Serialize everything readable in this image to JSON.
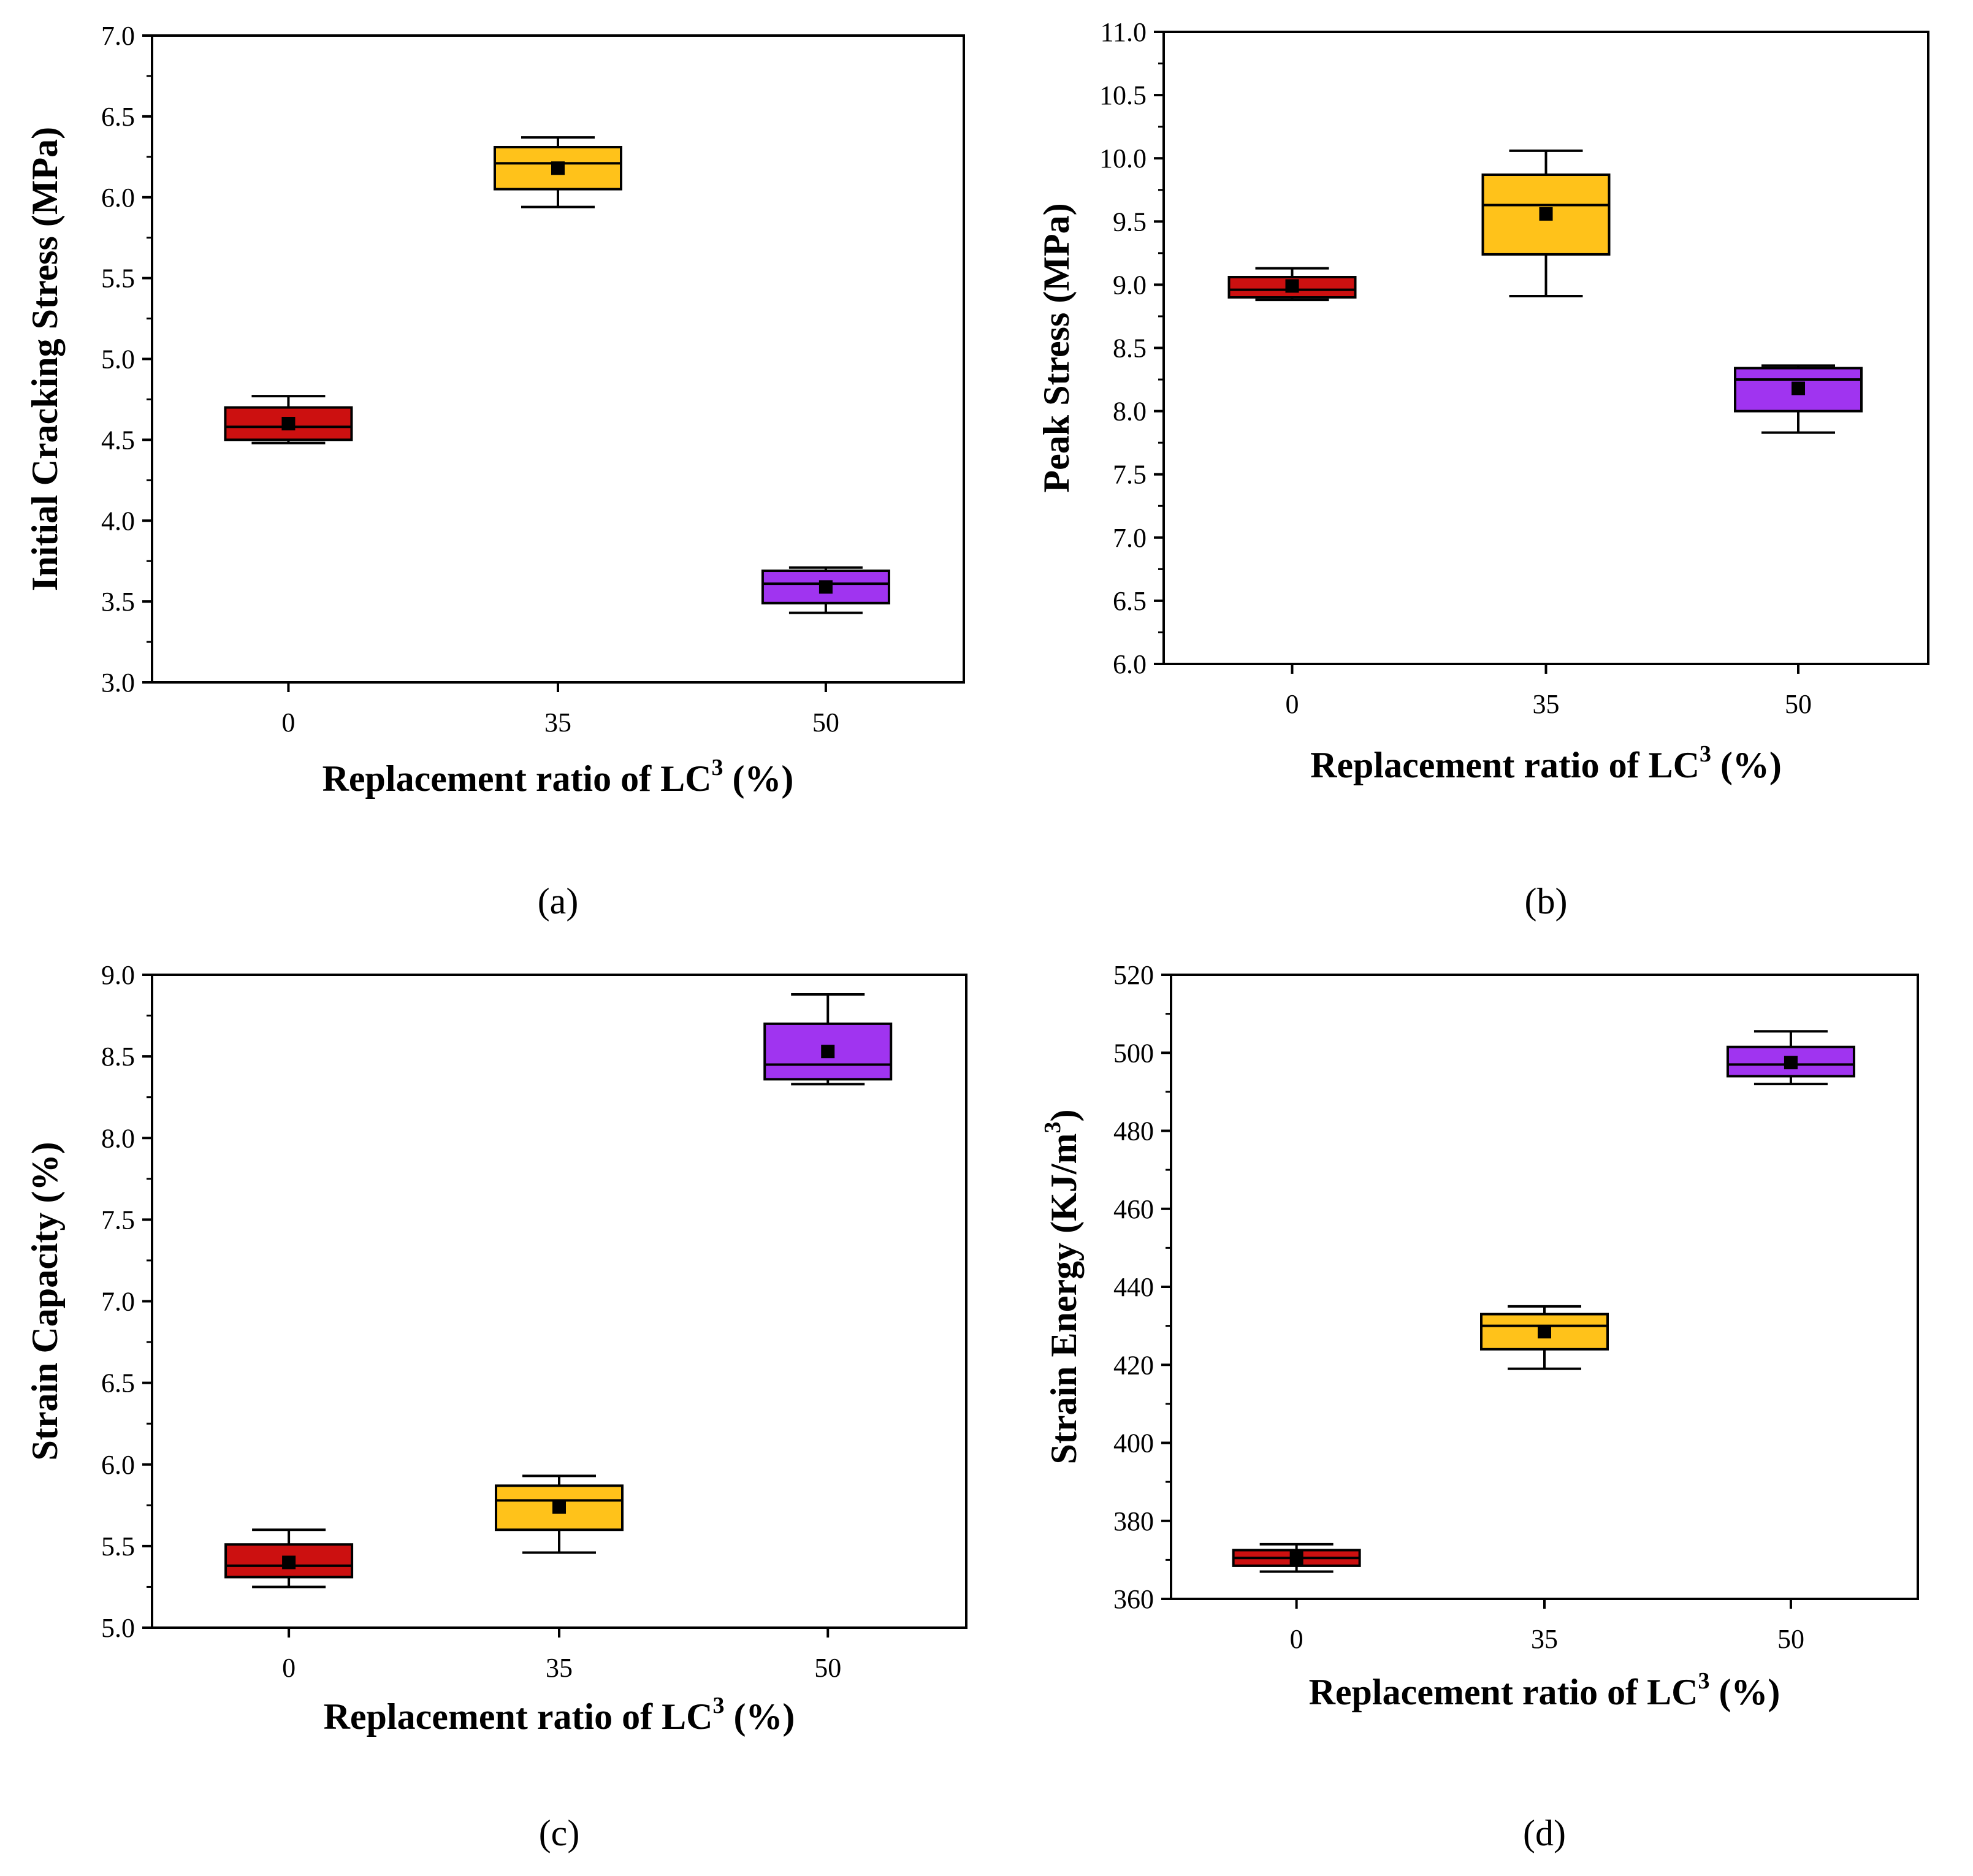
{
  "colors": {
    "series": [
      "#cc1010",
      "#ffc21a",
      "#a034f0"
    ],
    "mean_marker": "#000000",
    "axis": "#000000"
  },
  "chart_data": [
    {
      "type": "box",
      "panel_label": "(a)",
      "categories": [
        "0",
        "35",
        "50"
      ],
      "xlabel": {
        "main": "Replacement ratio of LC",
        "sup": "3",
        "tail": " (%)"
      },
      "ylabel": {
        "main": "Initial Cracking Stress (MPa)",
        "sup": "",
        "tail": ""
      },
      "ylim": [
        3.0,
        7.0
      ],
      "yticks": [
        3.0,
        3.5,
        4.0,
        4.5,
        5.0,
        5.5,
        6.0,
        6.5,
        7.0
      ],
      "ytick_labels": [
        "3.0",
        "3.5",
        "4.0",
        "4.5",
        "5.0",
        "5.5",
        "6.0",
        "6.5",
        "7.0"
      ],
      "boxes": [
        {
          "category": "0",
          "min": 4.48,
          "q1": 4.5,
          "median": 4.58,
          "q3": 4.7,
          "max": 4.77,
          "mean": 4.6
        },
        {
          "category": "35",
          "min": 5.94,
          "q1": 6.05,
          "median": 6.21,
          "q3": 6.31,
          "max": 6.37,
          "mean": 6.18
        },
        {
          "category": "50",
          "min": 3.43,
          "q1": 3.49,
          "median": 3.61,
          "q3": 3.69,
          "max": 3.71,
          "mean": 3.59
        }
      ]
    },
    {
      "type": "box",
      "panel_label": "(b)",
      "categories": [
        "0",
        "35",
        "50"
      ],
      "xlabel": {
        "main": "Replacement ratio of LC",
        "sup": "3",
        "tail": " (%)"
      },
      "ylabel": {
        "main": "Peak Stress (MPa)",
        "sup": "",
        "tail": ""
      },
      "ylim": [
        6.0,
        11.0
      ],
      "yticks": [
        6.0,
        6.5,
        7.0,
        7.5,
        8.0,
        8.5,
        9.0,
        9.5,
        10.0,
        10.5,
        11.0
      ],
      "ytick_labels": [
        "6.0",
        "6.5",
        "7.0",
        "7.5",
        "8.0",
        "8.5",
        "9.0",
        "9.5",
        "10.0",
        "10.5",
        "11.0"
      ],
      "boxes": [
        {
          "category": "0",
          "min": 8.88,
          "q1": 8.9,
          "median": 8.96,
          "q3": 9.06,
          "max": 9.13,
          "mean": 8.99
        },
        {
          "category": "35",
          "min": 8.91,
          "q1": 9.24,
          "median": 9.63,
          "q3": 9.87,
          "max": 10.06,
          "mean": 9.56
        },
        {
          "category": "50",
          "min": 7.83,
          "q1": 8.0,
          "median": 8.25,
          "q3": 8.34,
          "max": 8.36,
          "mean": 8.18
        }
      ]
    },
    {
      "type": "box",
      "panel_label": "(c)",
      "categories": [
        "0",
        "35",
        "50"
      ],
      "xlabel": {
        "main": "Replacement ratio of LC",
        "sup": "3",
        "tail": " (%)"
      },
      "ylabel": {
        "main": "Strain Capacity (%)",
        "sup": "",
        "tail": ""
      },
      "ylim": [
        5.0,
        9.0
      ],
      "yticks": [
        5.0,
        5.5,
        6.0,
        6.5,
        7.0,
        7.5,
        8.0,
        8.5,
        9.0
      ],
      "ytick_labels": [
        "5.0",
        "5.5",
        "6.0",
        "6.5",
        "7.0",
        "7.5",
        "8.0",
        "8.5",
        "9.0"
      ],
      "boxes": [
        {
          "category": "0",
          "min": 5.25,
          "q1": 5.31,
          "median": 5.38,
          "q3": 5.51,
          "max": 5.6,
          "mean": 5.4
        },
        {
          "category": "35",
          "min": 5.46,
          "q1": 5.6,
          "median": 5.78,
          "q3": 5.87,
          "max": 5.93,
          "mean": 5.74
        },
        {
          "category": "50",
          "min": 8.33,
          "q1": 8.36,
          "median": 8.45,
          "q3": 8.7,
          "max": 8.88,
          "mean": 8.53
        }
      ]
    },
    {
      "type": "box",
      "panel_label": "(d)",
      "categories": [
        "0",
        "35",
        "50"
      ],
      "xlabel": {
        "main": "Replacement ratio of LC",
        "sup": "3",
        "tail": " (%)"
      },
      "ylabel": {
        "main": "Strain Energy (KJ/m",
        "sup": "3",
        "tail": ")"
      },
      "ylim": [
        360,
        520
      ],
      "yticks": [
        360,
        380,
        400,
        420,
        440,
        460,
        480,
        500,
        520
      ],
      "ytick_labels": [
        "360",
        "380",
        "400",
        "420",
        "440",
        "460",
        "480",
        "500",
        "520"
      ],
      "boxes": [
        {
          "category": "0",
          "min": 367,
          "q1": 368.5,
          "median": 370.5,
          "q3": 372.5,
          "max": 374,
          "mean": 370.5
        },
        {
          "category": "35",
          "min": 419,
          "q1": 424,
          "median": 430,
          "q3": 433,
          "max": 435,
          "mean": 428.5
        },
        {
          "category": "50",
          "min": 492,
          "q1": 494,
          "median": 497,
          "q3": 501.5,
          "max": 505.5,
          "mean": 497.5
        }
      ]
    }
  ]
}
